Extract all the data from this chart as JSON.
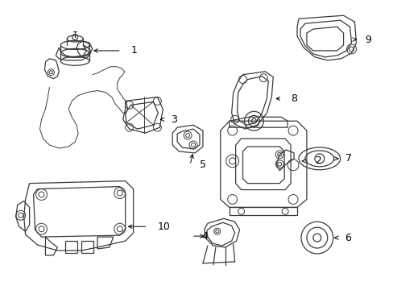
{
  "bg_color": "#ffffff",
  "line_color": "#3a3a3a",
  "text_color": "#000000",
  "fig_width": 4.89,
  "fig_height": 3.6,
  "dpi": 100
}
